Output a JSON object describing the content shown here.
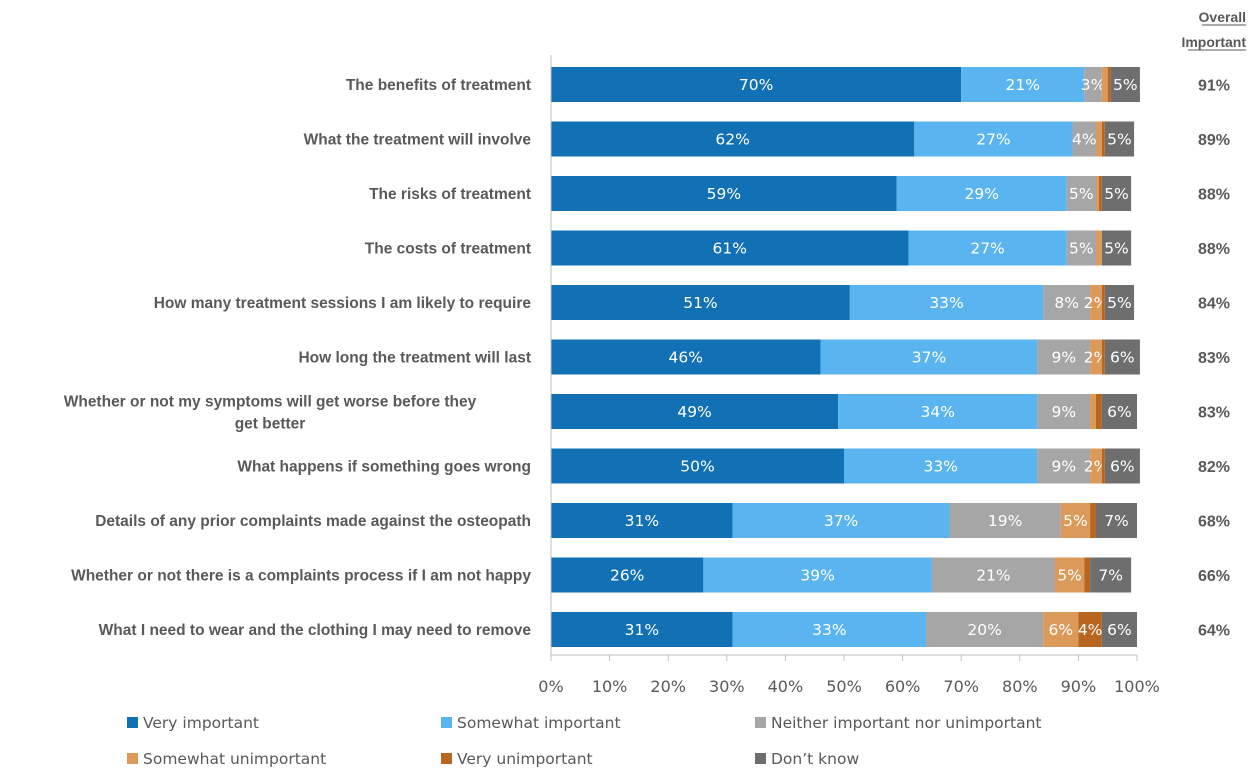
{
  "chart_data": {
    "type": "bar",
    "orientation": "horizontal",
    "stacked": true,
    "categories": [
      "The benefits of treatment",
      "What the treatment will involve",
      "The risks of treatment",
      "The costs of treatment",
      "How many treatment sessions I am likely to require",
      "How long the treatment will last",
      "Whether or not my symptoms will get worse before they get better",
      "What happens if something goes wrong",
      "Details of any prior complaints made against the osteopath",
      "Whether or not there is a complaints process if I am not happy",
      "What I need to wear and the clothing I may need to remove"
    ],
    "series": [
      {
        "name": "Very important",
        "color": "#1271b5",
        "values": [
          70,
          62,
          59,
          61,
          51,
          46,
          49,
          50,
          31,
          26,
          31
        ],
        "labels": [
          "70%",
          "62%",
          "59%",
          "61%",
          "51%",
          "46%",
          "49%",
          "50%",
          "31%",
          "26%",
          "31%"
        ]
      },
      {
        "name": "Somewhat important",
        "color": "#5ab4ef",
        "values": [
          21,
          27,
          29,
          27,
          33,
          37,
          34,
          33,
          37,
          39,
          33
        ],
        "labels": [
          "21%",
          "27%",
          "29%",
          "27%",
          "33%",
          "37%",
          "34%",
          "33%",
          "37%",
          "39%",
          "33%"
        ]
      },
      {
        "name": "Neither important nor unimportant",
        "color": "#a6a6a6",
        "values": [
          3,
          4,
          5,
          5,
          8,
          9,
          9,
          9,
          19,
          21,
          20
        ],
        "labels": [
          "3%",
          "4%",
          "5%",
          "5%",
          "8%",
          "9%",
          "9%",
          "9%",
          "19%",
          "21%",
          "20%"
        ]
      },
      {
        "name": "Somewhat unimportant",
        "color": "#dc9a5a",
        "values": [
          1,
          1,
          0.5,
          1,
          2,
          2,
          1,
          2,
          5,
          5,
          6
        ],
        "labels": [
          "",
          "",
          "",
          "",
          "2%",
          "2%",
          "",
          "2%",
          "5%",
          "5%",
          "6%"
        ]
      },
      {
        "name": "Very unimportant",
        "color": "#b8651f",
        "values": [
          0.5,
          0.5,
          0.5,
          0,
          0.5,
          0.5,
          1,
          0.5,
          1,
          1,
          4
        ],
        "labels": [
          "",
          "",
          "",
          "",
          "",
          "",
          "",
          "",
          "",
          "",
          "4%"
        ]
      },
      {
        "name": "Don’t know",
        "color": "#6e6e6e",
        "values": [
          5,
          5,
          5,
          5,
          5,
          6,
          6,
          6,
          7,
          7,
          6
        ],
        "labels": [
          "5%",
          "5%",
          "5%",
          "5%",
          "5%",
          "6%",
          "6%",
          "6%",
          "7%",
          "7%",
          "6%"
        ]
      }
    ],
    "overall_header": [
      "Overall",
      "Important"
    ],
    "overall_important": [
      "91%",
      "89%",
      "88%",
      "88%",
      "84%",
      "83%",
      "83%",
      "82%",
      "68%",
      "66%",
      "64%"
    ],
    "xlim": [
      0,
      100
    ],
    "xticks": [
      "0%",
      "10%",
      "20%",
      "30%",
      "40%",
      "50%",
      "60%",
      "70%",
      "80%",
      "90%",
      "100%"
    ],
    "grid": false,
    "legend_position": "bottom",
    "title": "",
    "xlabel": "",
    "ylabel": ""
  }
}
